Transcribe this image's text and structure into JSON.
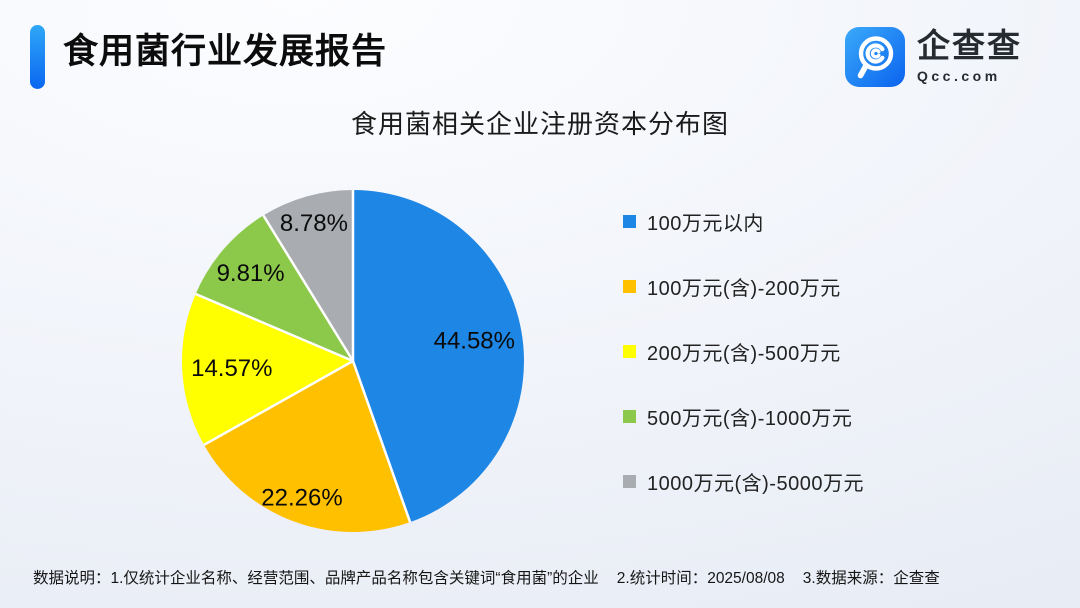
{
  "header": {
    "title": "食用菌行业发展报告",
    "accent_color_top": "#2fa7f8",
    "accent_color_bottom": "#0a67f0",
    "logo": {
      "brand": "企查查",
      "domain": "Qcc.com",
      "icon": "qcc-magnifier-icon",
      "icon_gradient_start": "#3aaafa",
      "icon_gradient_end": "#0b63ee",
      "text_color": "#262b30"
    }
  },
  "chart_data": {
    "type": "pie",
    "title": "食用菌相关企业注册资本分布图",
    "unit": "%",
    "direction": "clockwise",
    "start_angle_deg": 0,
    "legend_position": "right",
    "categories": [
      "100万元以内",
      "100万元(含)-200万元",
      "200万元(含)-500万元",
      "500万元(含)-1000万元",
      "1000万元(含)-5000万元"
    ],
    "values": [
      44.58,
      22.26,
      14.57,
      9.81,
      8.78
    ],
    "colors": [
      "#1e86e4",
      "#ffc000",
      "#ffff00",
      "#8cc94b",
      "#a9adb1"
    ],
    "label_radius_fraction": [
      0.72,
      0.85,
      0.71,
      0.79,
      0.84
    ],
    "label_color": "#0b0b0b",
    "separator_color": "#ffffff"
  },
  "footer": {
    "notes": [
      "数据说明：1.仅统计企业名称、经营范围、品牌产品名称包含关键词“食用菌”的企业",
      "2.统计时间：2025/08/08",
      "3.数据来源：企查查"
    ]
  }
}
